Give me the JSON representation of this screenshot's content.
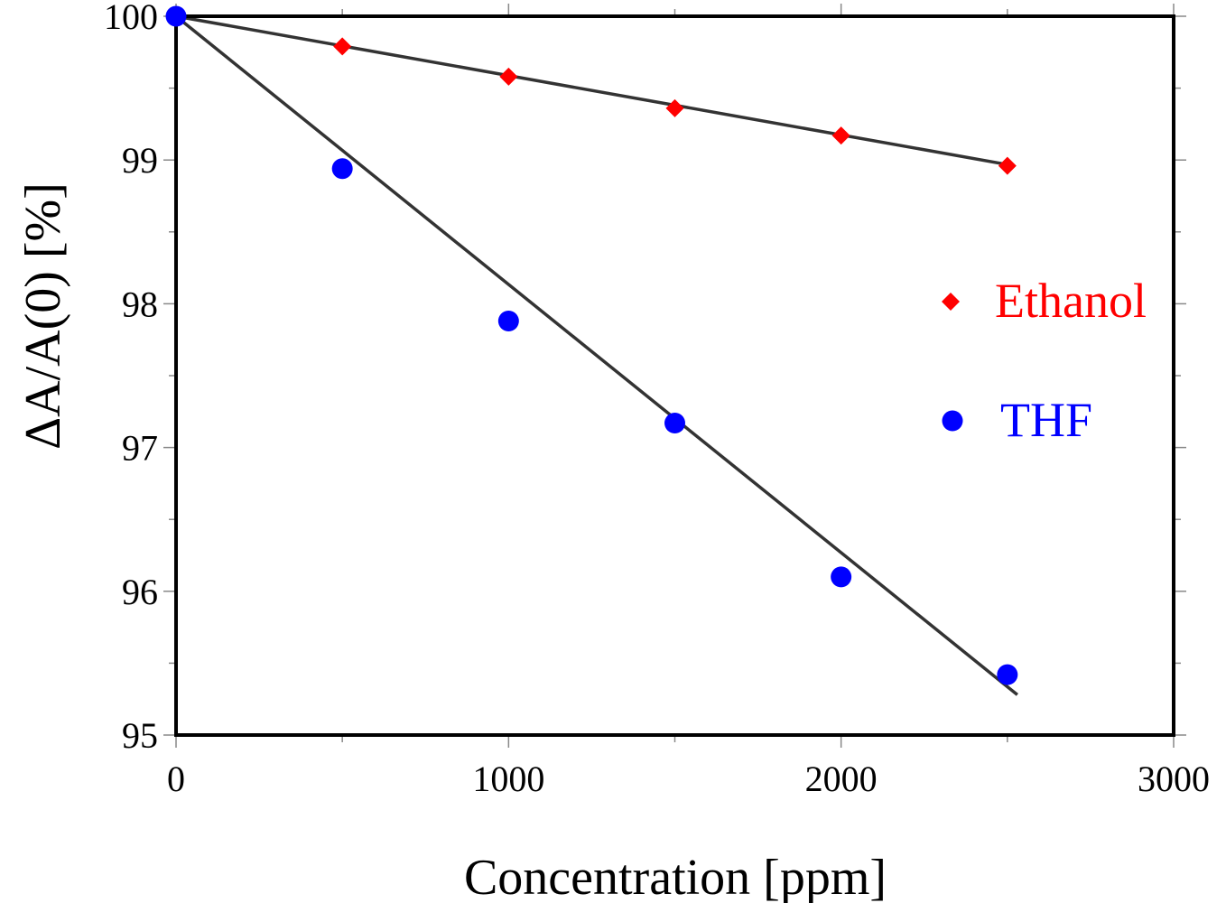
{
  "chart_data": {
    "type": "scatter",
    "xlabel": "Concentration [ppm]",
    "ylabel": "ΔA/A(0) [%]",
    "xlim": [
      0,
      3000
    ],
    "ylim": [
      95,
      100
    ],
    "x_ticks": [
      0,
      1000,
      2000,
      3000
    ],
    "x_tick_labels": [
      "0",
      "1000",
      "2000",
      "3000"
    ],
    "y_ticks": [
      95,
      96,
      97,
      98,
      99,
      100
    ],
    "y_tick_labels": [
      "95",
      "96",
      "97",
      "98",
      "99",
      "100"
    ],
    "grid": false,
    "legend_position": "right",
    "series": [
      {
        "name": "Ethanol",
        "marker": "diamond",
        "color": "#ff0000",
        "x": [
          0,
          500,
          1000,
          1500,
          2000,
          2500
        ],
        "y": [
          100,
          99.79,
          99.58,
          99.36,
          99.17,
          98.96
        ],
        "fit": {
          "x": [
            0,
            2520
          ],
          "y": [
            100,
            98.96
          ]
        }
      },
      {
        "name": "THF",
        "marker": "circle",
        "color": "#0000ff",
        "x": [
          0,
          500,
          1000,
          1500,
          2000,
          2500
        ],
        "y": [
          100,
          98.94,
          97.88,
          97.17,
          96.1,
          95.42
        ],
        "fit": {
          "x": [
            0,
            2530
          ],
          "y": [
            100,
            95.28
          ]
        }
      }
    ],
    "fit_line_color": "#333333"
  }
}
